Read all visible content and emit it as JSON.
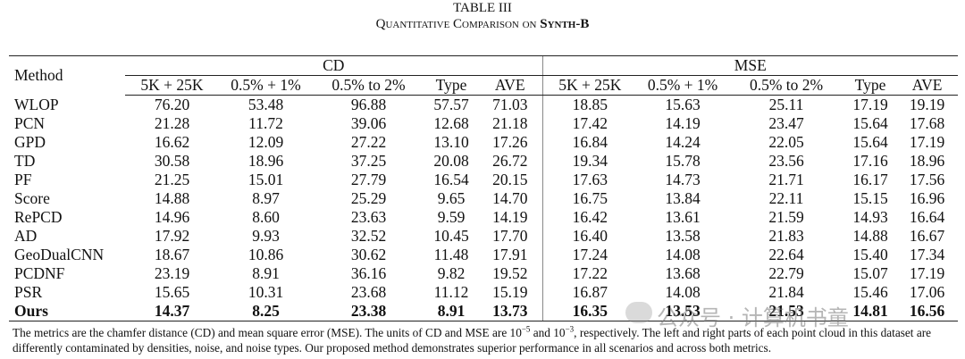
{
  "header": {
    "title": "TABLE III",
    "subtitle": "Quantitative Comparison on",
    "subtitle_bold": "Synth-B"
  },
  "table": {
    "method_header": "Method",
    "groups": [
      "CD",
      "MSE"
    ],
    "cd_columns": [
      "5K + 25K",
      "0.5% + 1%",
      "0.5% to 2%",
      "Type",
      "AVE"
    ],
    "mse_columns": [
      "5K + 25K",
      "0.5% + 1%",
      "0.5% to 2%",
      "Type",
      "AVE"
    ],
    "rows": [
      [
        "WLOP",
        "76.20",
        "53.48",
        "96.88",
        "57.57",
        "71.03",
        "18.85",
        "15.63",
        "25.11",
        "17.19",
        "19.19"
      ],
      [
        "PCN",
        "21.28",
        "11.72",
        "39.06",
        "12.68",
        "21.18",
        "17.42",
        "14.19",
        "23.47",
        "15.64",
        "17.68"
      ],
      [
        "GPD",
        "16.62",
        "12.09",
        "27.22",
        "13.10",
        "17.26",
        "16.84",
        "14.24",
        "22.05",
        "15.64",
        "17.19"
      ],
      [
        "TD",
        "30.58",
        "18.96",
        "37.25",
        "20.08",
        "26.72",
        "19.34",
        "15.78",
        "23.56",
        "17.16",
        "18.96"
      ],
      [
        "PF",
        "21.25",
        "15.01",
        "27.79",
        "16.54",
        "20.15",
        "17.63",
        "14.73",
        "21.71",
        "16.17",
        "17.56"
      ],
      [
        "Score",
        "14.88",
        "8.97",
        "25.29",
        "9.65",
        "14.70",
        "16.75",
        "13.84",
        "22.11",
        "15.15",
        "16.96"
      ],
      [
        "RePCD",
        "14.96",
        "8.60",
        "23.63",
        "9.59",
        "14.19",
        "16.42",
        "13.61",
        "21.59",
        "14.93",
        "16.64"
      ],
      [
        "AD",
        "17.92",
        "9.93",
        "32.52",
        "10.45",
        "17.70",
        "16.40",
        "13.58",
        "21.83",
        "14.88",
        "16.67"
      ],
      [
        "GeoDualCNN",
        "18.67",
        "10.86",
        "30.62",
        "11.48",
        "17.91",
        "17.24",
        "14.08",
        "22.64",
        "15.40",
        "17.34"
      ],
      [
        "PCDNF",
        "23.19",
        "8.91",
        "36.16",
        "9.82",
        "19.52",
        "17.22",
        "13.68",
        "22.79",
        "15.07",
        "17.19"
      ],
      [
        "PSR",
        "15.65",
        "10.31",
        "23.68",
        "11.12",
        "15.19",
        "16.87",
        "14.08",
        "21.84",
        "15.46",
        "17.06"
      ],
      [
        "Ours",
        "14.37",
        "8.25",
        "23.38",
        "8.91",
        "13.73",
        "16.35",
        "13.53",
        "21.53",
        "14.81",
        "16.56"
      ]
    ]
  },
  "note": [
    "The metrics are the chamfer distance (CD) and mean square error (MSE). The units of CD and MSE are 10",
    "−5",
    " and 10",
    "−3",
    ", respectively. The left and right parts of each point cloud in this dataset are differently contaminated by densities, noise, and noise types. Our proposed method demonstrates superior performance in all scenarios and across both metrics."
  ],
  "watermark": "公众号 · 计算机书童"
}
